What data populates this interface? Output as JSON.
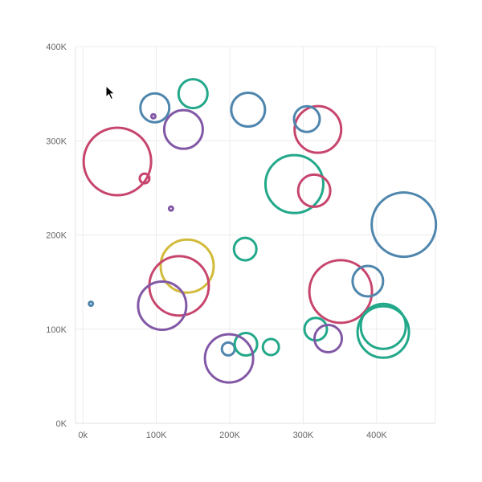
{
  "colors": {
    "pink": "#c7456d",
    "blue": "#4f86ad",
    "green": "#22a88a",
    "purple": "#8258a6",
    "yellow": "#d2bb3b",
    "grid": "#ececec",
    "tick_text": "#666666"
  },
  "cursor": {
    "icon": "mouse-pointer-icon"
  },
  "chart_data": {
    "type": "scatter",
    "title": "",
    "xlabel": "",
    "ylabel": "",
    "xlim": [
      -10000,
      480000
    ],
    "ylim": [
      0,
      400000
    ],
    "grid": true,
    "legend": "none",
    "x_ticks": [
      {
        "value": 0,
        "label": "0k"
      },
      {
        "value": 100000,
        "label": "100K"
      },
      {
        "value": 200000,
        "label": "200K"
      },
      {
        "value": 300000,
        "label": "300K"
      },
      {
        "value": 400000,
        "label": "400K"
      }
    ],
    "y_ticks": [
      {
        "value": 0,
        "label": "0K"
      },
      {
        "value": 100000,
        "label": "100K"
      },
      {
        "value": 200000,
        "label": "200K"
      },
      {
        "value": 300000,
        "label": "300K"
      },
      {
        "value": 400000,
        "label": "400K"
      }
    ],
    "points": [
      {
        "x": 47000,
        "y": 278000,
        "size": 42,
        "color": "pink"
      },
      {
        "x": 84000,
        "y": 260000,
        "size": 6,
        "color": "pink"
      },
      {
        "x": 96000,
        "y": 326000,
        "size": 2,
        "color": "purple"
      },
      {
        "x": 98000,
        "y": 335000,
        "size": 18,
        "color": "blue"
      },
      {
        "x": 137000,
        "y": 312000,
        "size": 24,
        "color": "purple"
      },
      {
        "x": 150000,
        "y": 350000,
        "size": 18,
        "color": "green"
      },
      {
        "x": 120000,
        "y": 228000,
        "size": 2,
        "color": "purple"
      },
      {
        "x": 225000,
        "y": 333000,
        "size": 21,
        "color": "blue"
      },
      {
        "x": 288000,
        "y": 254000,
        "size": 36,
        "color": "green"
      },
      {
        "x": 315000,
        "y": 247000,
        "size": 20,
        "color": "pink"
      },
      {
        "x": 320000,
        "y": 312000,
        "size": 29,
        "color": "pink"
      },
      {
        "x": 305000,
        "y": 323000,
        "size": 16,
        "color": "blue"
      },
      {
        "x": 437000,
        "y": 211000,
        "size": 40,
        "color": "blue"
      },
      {
        "x": 142000,
        "y": 167000,
        "size": 33,
        "color": "yellow"
      },
      {
        "x": 131000,
        "y": 146000,
        "size": 37,
        "color": "pink"
      },
      {
        "x": 108000,
        "y": 125000,
        "size": 30,
        "color": "purple"
      },
      {
        "x": 11000,
        "y": 127000,
        "size": 2,
        "color": "blue"
      },
      {
        "x": 221000,
        "y": 185000,
        "size": 14,
        "color": "green"
      },
      {
        "x": 351000,
        "y": 140000,
        "size": 39,
        "color": "pink"
      },
      {
        "x": 388000,
        "y": 151000,
        "size": 19,
        "color": "blue"
      },
      {
        "x": 317000,
        "y": 100000,
        "size": 14,
        "color": "green"
      },
      {
        "x": 334000,
        "y": 90000,
        "size": 17,
        "color": "purple"
      },
      {
        "x": 409000,
        "y": 97000,
        "size": 32,
        "color": "green"
      },
      {
        "x": 409000,
        "y": 103000,
        "size": 28,
        "color": "green"
      },
      {
        "x": 198000,
        "y": 79000,
        "size": 8,
        "color": "blue"
      },
      {
        "x": 222000,
        "y": 84000,
        "size": 14,
        "color": "green"
      },
      {
        "x": 256000,
        "y": 81000,
        "size": 10,
        "color": "green"
      },
      {
        "x": 199000,
        "y": 69000,
        "size": 30,
        "color": "purple"
      }
    ]
  }
}
